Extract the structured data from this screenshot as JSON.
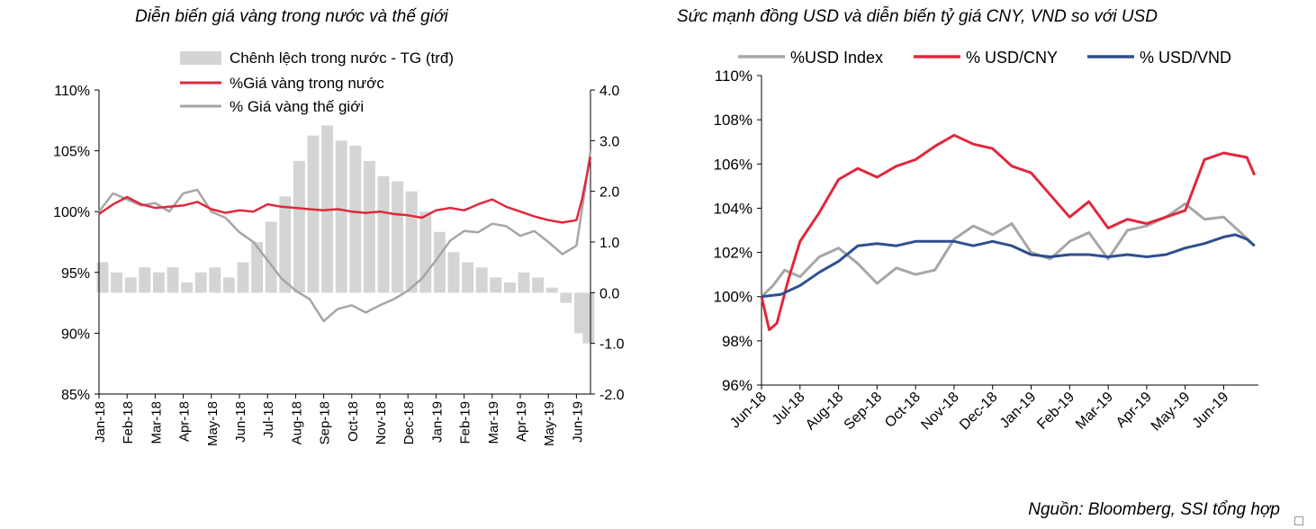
{
  "source": "Nguồn: Bloomberg, SSI tổng hợp",
  "chart_data": [
    {
      "type": "line",
      "title": "Diễn biến giá vàng trong nước và thế giới",
      "x_labels": [
        "Jan-18",
        "Feb-18",
        "Mar-18",
        "Apr-18",
        "May-18",
        "Jun-18",
        "Jul-18",
        "Aug-18",
        "Sep-18",
        "Oct-18",
        "Nov-18",
        "Dec-18",
        "Jan-19",
        "Feb-19",
        "Mar-19",
        "Apr-19",
        "May-19",
        "Jun-19"
      ],
      "y_left": {
        "ticks": [
          "110%",
          "105%",
          "100%",
          "95%",
          "90%",
          "85%"
        ],
        "range": [
          85,
          110
        ]
      },
      "y_right": {
        "ticks": [
          "4.0",
          "3.0",
          "2.0",
          "1.0",
          "0.0",
          "-1.0",
          "-2.0"
        ],
        "range": [
          -2,
          4
        ]
      },
      "legend": [
        "Chênh lệch trong nước - TG (trđ)",
        "%Giá vàng trong nước",
        "% Giá vàng thế giới"
      ],
      "colors": {
        "bars": "#d4d4d4",
        "domestic": "#e0283c",
        "world": "#a6a6a6"
      },
      "series": [
        {
          "name": "Chênh lệch trong nước - TG (trđ)",
          "kind": "bar",
          "axis": "right",
          "x": [
            0,
            0.5,
            1,
            1.5,
            2,
            2.5,
            3,
            3.5,
            4,
            4.5,
            5,
            5.5,
            6,
            6.5,
            7,
            7.5,
            8,
            8.5,
            9,
            9.5,
            10,
            10.5,
            11,
            11.5,
            12,
            12.5,
            13,
            13.5,
            14,
            14.5,
            15,
            15.5,
            16,
            16.5,
            17,
            17.3
          ],
          "values": [
            0.6,
            0.4,
            0.3,
            0.5,
            0.4,
            0.5,
            0.2,
            0.4,
            0.5,
            0.3,
            0.6,
            1.0,
            1.4,
            1.9,
            2.6,
            3.1,
            3.3,
            3.0,
            2.9,
            2.6,
            2.3,
            2.2,
            2.0,
            1.6,
            1.2,
            0.8,
            0.6,
            0.5,
            0.3,
            0.2,
            0.4,
            0.3,
            0.1,
            -0.2,
            -0.8,
            -1.0
          ]
        },
        {
          "name": "%Giá vàng trong nước",
          "axis": "left",
          "x": [
            0,
            0.5,
            1,
            1.5,
            2,
            2.5,
            3,
            3.5,
            4,
            4.5,
            5,
            5.5,
            6,
            6.5,
            7,
            7.5,
            8,
            8.5,
            9,
            9.5,
            10,
            10.5,
            11,
            11.5,
            12,
            12.5,
            13,
            13.5,
            14,
            14.5,
            15,
            15.5,
            16,
            16.5,
            17,
            17.2,
            17.5
          ],
          "values": [
            99.8,
            100.6,
            101.2,
            100.6,
            100.3,
            100.4,
            100.5,
            100.8,
            100.2,
            99.9,
            100.1,
            100.0,
            100.6,
            100.4,
            100.3,
            100.2,
            100.1,
            100.2,
            100.0,
            99.9,
            100.0,
            99.8,
            99.7,
            99.5,
            100.1,
            100.3,
            100.1,
            100.6,
            101.0,
            100.4,
            100.0,
            99.6,
            99.3,
            99.1,
            99.3,
            101.0,
            104.5
          ]
        },
        {
          "name": "% Giá vàng thế giới",
          "axis": "left",
          "x": [
            0,
            0.5,
            1,
            1.5,
            2,
            2.5,
            3,
            3.5,
            4,
            4.5,
            5,
            5.5,
            6,
            6.5,
            7,
            7.5,
            8,
            8.5,
            9,
            9.5,
            10,
            10.5,
            11,
            11.5,
            12,
            12.5,
            13,
            13.5,
            14,
            14.5,
            15,
            15.5,
            16,
            16.5,
            17,
            17.2,
            17.5
          ],
          "values": [
            100.0,
            101.5,
            101.0,
            100.5,
            100.7,
            100.0,
            101.5,
            101.8,
            100.0,
            99.5,
            98.3,
            97.5,
            96.0,
            94.5,
            93.5,
            92.8,
            91.0,
            92.0,
            92.3,
            91.7,
            92.3,
            92.8,
            93.5,
            94.5,
            96.0,
            97.6,
            98.4,
            98.3,
            99.0,
            98.8,
            98.0,
            98.4,
            97.5,
            96.5,
            97.2,
            100.2,
            105.0
          ]
        }
      ]
    },
    {
      "type": "line",
      "title": "Sức mạnh đồng USD và diễn biến tỷ giá CNY, VND so với USD",
      "x_labels": [
        "Jun-18",
        "Jul-18",
        "Aug-18",
        "Sep-18",
        "Oct-18",
        "Nov-18",
        "Dec-18",
        "Jan-19",
        "Feb-19",
        "Mar-19",
        "Apr-19",
        "May-19",
        "Jun-19"
      ],
      "y_left": {
        "ticks": [
          "110%",
          "108%",
          "106%",
          "104%",
          "102%",
          "100%",
          "98%",
          "96%"
        ],
        "range": [
          96,
          110
        ]
      },
      "legend": [
        "%USD Index",
        "% USD/CNY",
        "% USD/VND"
      ],
      "colors": {
        "usd_index": "#a6a6a6",
        "usd_cny": "#e0283c",
        "usd_vnd": "#2e4f8f"
      },
      "series": [
        {
          "name": "%USD Index",
          "x": [
            0,
            0.3,
            0.6,
            1,
            1.5,
            2,
            2.5,
            3,
            3.5,
            4,
            4.5,
            5,
            5.5,
            6,
            6.5,
            7,
            7.5,
            8,
            8.5,
            9,
            9.5,
            10,
            10.5,
            11,
            11.5,
            12,
            12.5,
            12.8
          ],
          "values": [
            100.0,
            100.5,
            101.2,
            100.9,
            101.8,
            102.2,
            101.5,
            100.6,
            101.3,
            101.0,
            101.2,
            102.6,
            103.2,
            102.8,
            103.3,
            102.0,
            101.7,
            102.5,
            102.9,
            101.7,
            103.0,
            103.2,
            103.6,
            104.2,
            103.5,
            103.6,
            102.8,
            102.3
          ]
        },
        {
          "name": "% USD/CNY",
          "x": [
            0,
            0.2,
            0.4,
            0.7,
            1,
            1.5,
            2,
            2.5,
            3,
            3.5,
            4,
            4.5,
            5,
            5.5,
            6,
            6.5,
            7,
            7.5,
            8,
            8.5,
            9,
            9.5,
            10,
            10.5,
            11,
            11.5,
            12,
            12.3,
            12.6,
            12.8
          ],
          "values": [
            100.0,
            98.5,
            98.8,
            100.8,
            102.5,
            103.8,
            105.3,
            105.8,
            105.4,
            105.9,
            106.2,
            106.8,
            107.3,
            106.9,
            106.7,
            105.9,
            105.6,
            104.6,
            103.6,
            104.3,
            103.1,
            103.5,
            103.3,
            103.6,
            103.9,
            106.2,
            106.5,
            106.4,
            106.3,
            105.5
          ]
        },
        {
          "name": "% USD/VND",
          "x": [
            0,
            0.5,
            1,
            1.5,
            2,
            2.5,
            3,
            3.5,
            4,
            4.5,
            5,
            5.5,
            6,
            6.5,
            7,
            7.5,
            8,
            8.5,
            9,
            9.5,
            10,
            10.5,
            11,
            11.5,
            12,
            12.3,
            12.6,
            12.8
          ],
          "values": [
            100.0,
            100.1,
            100.5,
            101.1,
            101.6,
            102.3,
            102.4,
            102.3,
            102.5,
            102.5,
            102.5,
            102.3,
            102.5,
            102.3,
            101.9,
            101.8,
            101.9,
            101.9,
            101.8,
            101.9,
            101.8,
            101.9,
            102.2,
            102.4,
            102.7,
            102.8,
            102.6,
            102.3
          ]
        }
      ]
    }
  ]
}
